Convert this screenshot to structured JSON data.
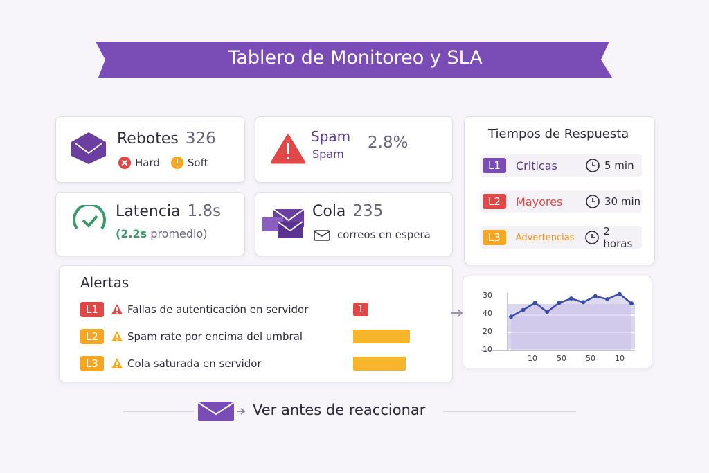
{
  "header": {
    "title": "Tablero de Monitoreo y SLA"
  },
  "cards": {
    "rebotes": {
      "label": "Rebotes",
      "value": "326",
      "tags": [
        "Hard",
        "Soft"
      ]
    },
    "spam": {
      "label": "Spam",
      "sublabel": "Spam",
      "value": "2.8%"
    },
    "latencia": {
      "label": "Latencia",
      "value": "1.8s",
      "note_value": "(2.2s",
      "note": "promedio)"
    },
    "cola": {
      "label": "Cola",
      "value": "235",
      "note": "correos en espera"
    }
  },
  "response_times": {
    "title": "Tiempos de Respuesta",
    "rows": [
      {
        "level": "L1",
        "name": "Criticas",
        "time": "5 min"
      },
      {
        "level": "L2",
        "name": "Mayores",
        "time": "30 min"
      },
      {
        "level": "L3",
        "name": "Advertencias",
        "time": "2 horas"
      }
    ]
  },
  "alerts": {
    "title": "Alertas",
    "rows": [
      {
        "level": "L1",
        "text": "Fallas de autenticación en servidor",
        "badge": "1"
      },
      {
        "level": "L2",
        "text": "Spam rate por encima del umbral"
      },
      {
        "level": "L3",
        "text": "Cola saturada en servidor"
      }
    ]
  },
  "mini_chart": {
    "ylim": [
      0,
      100
    ],
    "y_labels": [
      "30",
      "40",
      "20",
      "10"
    ],
    "x_labels": [
      "10",
      "50",
      "50",
      "10"
    ],
    "values": [
      56,
      67,
      79,
      64,
      79,
      86,
      80,
      90,
      85,
      94,
      78
    ],
    "color": "#3a4fa8"
  },
  "footer": {
    "text": "Ver antes de reaccionar"
  }
}
